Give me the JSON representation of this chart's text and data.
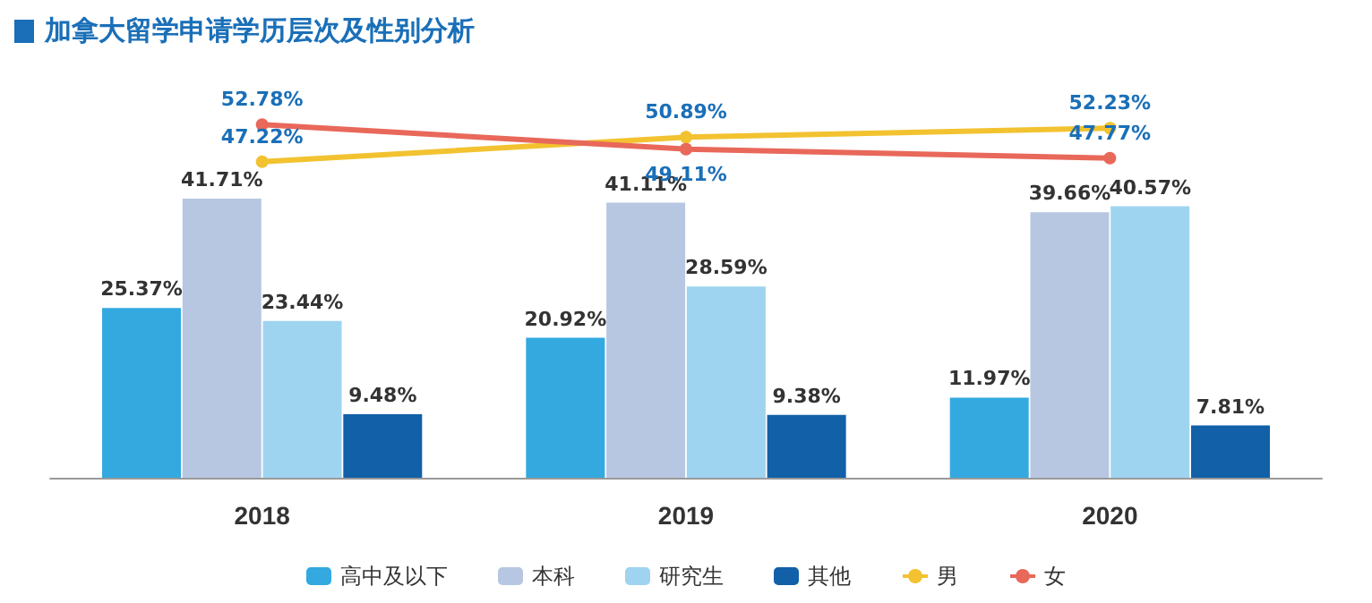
{
  "chart_data": {
    "type": "bar",
    "title": "加拿大留学申请学历层次及性别分析",
    "categories": [
      "2018",
      "2019",
      "2020"
    ],
    "series": [
      {
        "name": "高中及以下",
        "color": "#33a9e0",
        "values": [
          25.37,
          20.92,
          11.97
        ],
        "value_labels": [
          "25.37%",
          "20.92%",
          "11.97%"
        ]
      },
      {
        "name": "本科",
        "color": "#b7c7e2",
        "values": [
          41.71,
          41.11,
          39.66
        ],
        "value_labels": [
          "41.71%",
          "41.11%",
          "39.66%"
        ]
      },
      {
        "name": "研究生",
        "color": "#9fd4f0",
        "values": [
          23.44,
          28.59,
          40.57
        ],
        "value_labels": [
          "23.44%",
          "28.59%",
          "40.57%"
        ]
      },
      {
        "name": "其他",
        "color": "#1160a8",
        "values": [
          9.48,
          9.38,
          7.81
        ],
        "value_labels": [
          "9.48%",
          "9.38%",
          "7.81%"
        ]
      },
      {
        "name": "男",
        "type": "line",
        "color": "#f2c230",
        "values": [
          47.22,
          50.89,
          52.23
        ],
        "value_labels": [
          "47.22%",
          "50.89%",
          "52.23%"
        ]
      },
      {
        "name": "女",
        "type": "line",
        "color": "#e8685a",
        "values": [
          52.78,
          49.11,
          47.77
        ],
        "value_labels": [
          "52.78%",
          "49.11%",
          "47.77%"
        ]
      }
    ],
    "legend": "bottom",
    "marker": "circle"
  }
}
